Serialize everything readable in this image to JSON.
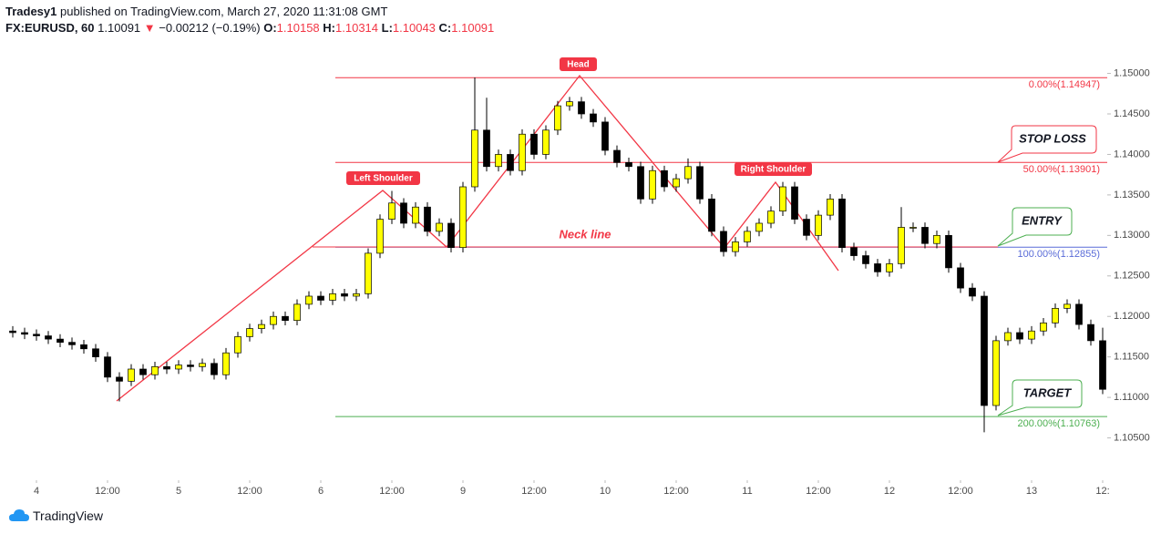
{
  "header": {
    "author": "Tradesy1",
    "published": " published on TradingView.com, March 27, 2020 11:31:08 GMT",
    "symbol": "FX:EURUSD, 60",
    "last": "1.10091",
    "arrow": "▼",
    "change": "−0.00212 (−0.19%)",
    "ohlc": [
      {
        "label": "O:",
        "value": "1.10158"
      },
      {
        "label": "H:",
        "value": "1.10314"
      },
      {
        "label": "L:",
        "value": "1.10043"
      },
      {
        "label": "C:",
        "value": "1.10091"
      }
    ]
  },
  "footer": {
    "brand": "TradingView"
  },
  "chart_data": {
    "type": "candlestick",
    "up_color": "#ffff00",
    "down_color": "#000000",
    "xlim": [
      0,
      92
    ],
    "xticks": [
      {
        "value": 2,
        "label": "4"
      },
      {
        "value": 8,
        "label": "12:00"
      },
      {
        "value": 14,
        "label": "5"
      },
      {
        "value": 20,
        "label": "12:00"
      },
      {
        "value": 26,
        "label": "6"
      },
      {
        "value": 32,
        "label": "12:00"
      },
      {
        "value": 38,
        "label": "9"
      },
      {
        "value": 44,
        "label": "12:00"
      },
      {
        "value": 50,
        "label": "10"
      },
      {
        "value": 56,
        "label": "12:00"
      },
      {
        "value": 62,
        "label": "11"
      },
      {
        "value": 68,
        "label": "12:00"
      },
      {
        "value": 74,
        "label": "12"
      },
      {
        "value": 80,
        "label": "12:00"
      },
      {
        "value": 86,
        "label": "13"
      },
      {
        "value": 92,
        "label": "12:"
      }
    ],
    "ylim": [
      1.1,
      1.154
    ],
    "yticks": [
      {
        "value": 1.105,
        "label": "1.10500"
      },
      {
        "value": 1.11,
        "label": "1.11000"
      },
      {
        "value": 1.115,
        "label": "1.11500"
      },
      {
        "value": 1.12,
        "label": "1.12000"
      },
      {
        "value": 1.125,
        "label": "1.12500"
      },
      {
        "value": 1.13,
        "label": "1.13000"
      },
      {
        "value": 1.135,
        "label": "1.13500"
      },
      {
        "value": 1.14,
        "label": "1.14000"
      },
      {
        "value": 1.145,
        "label": "1.14500"
      },
      {
        "value": 1.15,
        "label": "1.15000"
      }
    ],
    "open": [
      1.1182,
      1.118,
      1.1178,
      1.1176,
      1.1172,
      1.1168,
      1.1165,
      1.116,
      1.115,
      1.1125,
      1.112,
      1.1135,
      1.1128,
      1.1138,
      1.1135,
      1.114,
      1.1138,
      1.1142,
      1.1128,
      1.1155,
      1.1175,
      1.1185,
      1.119,
      1.12,
      1.1195,
      1.1215,
      1.1225,
      1.122,
      1.1228,
      1.1225,
      1.1228,
      1.1278,
      1.132,
      1.134,
      1.1315,
      1.1335,
      1.1305,
      1.1315,
      1.1285,
      1.136,
      1.143,
      1.1385,
      1.14,
      1.138,
      1.1425,
      1.14,
      1.143,
      1.146,
      1.1465,
      1.145,
      1.144,
      1.1405,
      1.139,
      1.1385,
      1.1345,
      1.138,
      1.136,
      1.137,
      1.1385,
      1.1345,
      1.1305,
      1.128,
      1.1292,
      1.1305,
      1.1315,
      1.133,
      1.136,
      1.132,
      1.13,
      1.1325,
      1.1345,
      1.1285,
      1.1275,
      1.1265,
      1.1255,
      1.1265,
      1.131,
      1.131,
      1.129,
      1.13,
      1.126,
      1.1235,
      1.1225,
      1.109,
      1.117,
      1.118,
      1.1172,
      1.1182,
      1.1192,
      1.121,
      1.1215,
      1.119,
      1.117
    ],
    "high": [
      1.1188,
      1.1186,
      1.1184,
      1.1182,
      1.1178,
      1.1174,
      1.1171,
      1.1166,
      1.1156,
      1.1131,
      1.1141,
      1.1141,
      1.1144,
      1.1144,
      1.1146,
      1.1146,
      1.1148,
      1.1148,
      1.1161,
      1.1181,
      1.1191,
      1.1196,
      1.1206,
      1.1206,
      1.1221,
      1.1231,
      1.1231,
      1.1234,
      1.1234,
      1.1234,
      1.1284,
      1.1326,
      1.1355,
      1.1346,
      1.1341,
      1.1341,
      1.1321,
      1.1321,
      1.1366,
      1.1495,
      1.147,
      1.1406,
      1.1406,
      1.1431,
      1.1431,
      1.1436,
      1.1466,
      1.1471,
      1.1471,
      1.1456,
      1.1446,
      1.1411,
      1.1396,
      1.1391,
      1.1386,
      1.1386,
      1.1376,
      1.1395,
      1.1391,
      1.1351,
      1.1311,
      1.1298,
      1.1311,
      1.1321,
      1.1336,
      1.1366,
      1.1366,
      1.1326,
      1.1331,
      1.1351,
      1.1351,
      1.1291,
      1.1281,
      1.1271,
      1.1271,
      1.1335,
      1.1316,
      1.1316,
      1.1306,
      1.1306,
      1.1266,
      1.1241,
      1.1231,
      1.1176,
      1.1186,
      1.1186,
      1.1188,
      1.1198,
      1.1216,
      1.1221,
      1.1221,
      1.1196,
      1.1186
    ],
    "low": [
      1.1174,
      1.1172,
      1.117,
      1.1166,
      1.1162,
      1.1159,
      1.1154,
      1.1144,
      1.1119,
      1.1095,
      1.1114,
      1.1122,
      1.1122,
      1.1129,
      1.1129,
      1.1132,
      1.1132,
      1.1122,
      1.1122,
      1.1149,
      1.1169,
      1.1179,
      1.1184,
      1.1189,
      1.1189,
      1.1209,
      1.1214,
      1.1214,
      1.1219,
      1.1219,
      1.1222,
      1.1272,
      1.1314,
      1.1309,
      1.1309,
      1.1299,
      1.1299,
      1.1279,
      1.1279,
      1.1354,
      1.1379,
      1.1379,
      1.1374,
      1.1374,
      1.1394,
      1.1394,
      1.1424,
      1.1454,
      1.1444,
      1.1434,
      1.1399,
      1.1384,
      1.1379,
      1.1339,
      1.1339,
      1.1354,
      1.1354,
      1.1364,
      1.1339,
      1.1299,
      1.1274,
      1.1274,
      1.1286,
      1.1299,
      1.1309,
      1.1324,
      1.1314,
      1.1294,
      1.1294,
      1.1319,
      1.1279,
      1.1269,
      1.1259,
      1.1249,
      1.1249,
      1.1259,
      1.1304,
      1.1284,
      1.1284,
      1.1254,
      1.1229,
      1.1219,
      1.1057,
      1.1084,
      1.1164,
      1.1166,
      1.1166,
      1.1176,
      1.1186,
      1.1204,
      1.1184,
      1.1164,
      1.1104
    ],
    "close": [
      1.118,
      1.1178,
      1.1176,
      1.1172,
      1.1168,
      1.1165,
      1.116,
      1.115,
      1.1125,
      1.112,
      1.1135,
      1.1128,
      1.1138,
      1.1135,
      1.114,
      1.1138,
      1.1142,
      1.1128,
      1.1155,
      1.1175,
      1.1185,
      1.119,
      1.12,
      1.1195,
      1.1215,
      1.1225,
      1.122,
      1.1228,
      1.1225,
      1.1228,
      1.1278,
      1.132,
      1.134,
      1.1315,
      1.1335,
      1.1305,
      1.1315,
      1.1285,
      1.136,
      1.143,
      1.1385,
      1.14,
      1.138,
      1.1425,
      1.14,
      1.143,
      1.146,
      1.1465,
      1.145,
      1.144,
      1.1405,
      1.139,
      1.1385,
      1.1345,
      1.138,
      1.136,
      1.137,
      1.1385,
      1.1345,
      1.1305,
      1.128,
      1.1292,
      1.1305,
      1.1315,
      1.133,
      1.136,
      1.132,
      1.13,
      1.1325,
      1.1345,
      1.1285,
      1.1275,
      1.1265,
      1.1255,
      1.1265,
      1.131,
      1.131,
      1.129,
      1.13,
      1.126,
      1.1235,
      1.1225,
      1.109,
      1.117,
      1.118,
      1.1172,
      1.1182,
      1.1192,
      1.121,
      1.1215,
      1.119,
      1.117,
      1.111
    ],
    "levels": [
      {
        "label": "0.00%(1.14947)",
        "value": 1.14947,
        "color": "#f23645"
      },
      {
        "label": "50.00%(1.13901)",
        "value": 1.13901,
        "color": "#f23645"
      },
      {
        "label": "100.00%(1.12855)",
        "value": 1.12855,
        "color": "#5a6cd8"
      },
      {
        "label": "200.00%(1.10763)",
        "value": 1.10763,
        "color": "#4caf50"
      }
    ],
    "annotations": {
      "head": "Head",
      "left_shoulder": "Left Shoulder",
      "right_shoulder": "Right Shoulder",
      "neck_line": "Neck line",
      "stop_loss": "STOP LOSS",
      "entry": "ENTRY",
      "target": "TARGET"
    }
  }
}
